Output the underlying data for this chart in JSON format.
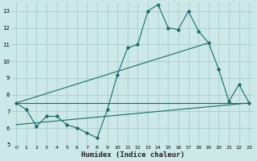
{
  "xlabel": "Humidex (Indice chaleur)",
  "ylabel": "",
  "bg_color": "#cce8e8",
  "grid_color": "#aacccc",
  "line_color": "#1a6b6b",
  "xlim": [
    -0.5,
    23.5
  ],
  "ylim": [
    5,
    13.5
  ],
  "yticks": [
    5,
    6,
    7,
    8,
    9,
    10,
    11,
    12,
    13
  ],
  "xticks": [
    0,
    1,
    2,
    3,
    4,
    5,
    6,
    7,
    8,
    9,
    10,
    11,
    12,
    13,
    14,
    15,
    16,
    17,
    18,
    19,
    20,
    21,
    22,
    23
  ],
  "series1_x": [
    0,
    1,
    2,
    3,
    4,
    5,
    6,
    7,
    8,
    9,
    10,
    11,
    12,
    13,
    14,
    15,
    16,
    17,
    18,
    19,
    20,
    21,
    22,
    23
  ],
  "series1_y": [
    7.5,
    7.1,
    6.1,
    6.7,
    6.7,
    6.2,
    6.0,
    5.7,
    5.4,
    7.1,
    9.2,
    10.8,
    11.0,
    13.0,
    13.4,
    12.0,
    11.9,
    13.0,
    11.8,
    11.1,
    9.5,
    7.6,
    8.6,
    7.5
  ],
  "series2_x": [
    0,
    23
  ],
  "series2_y": [
    7.5,
    7.5
  ],
  "series3_x": [
    0,
    23
  ],
  "series3_y": [
    6.2,
    7.5
  ],
  "series4_x": [
    0,
    19
  ],
  "series4_y": [
    7.5,
    11.1
  ]
}
